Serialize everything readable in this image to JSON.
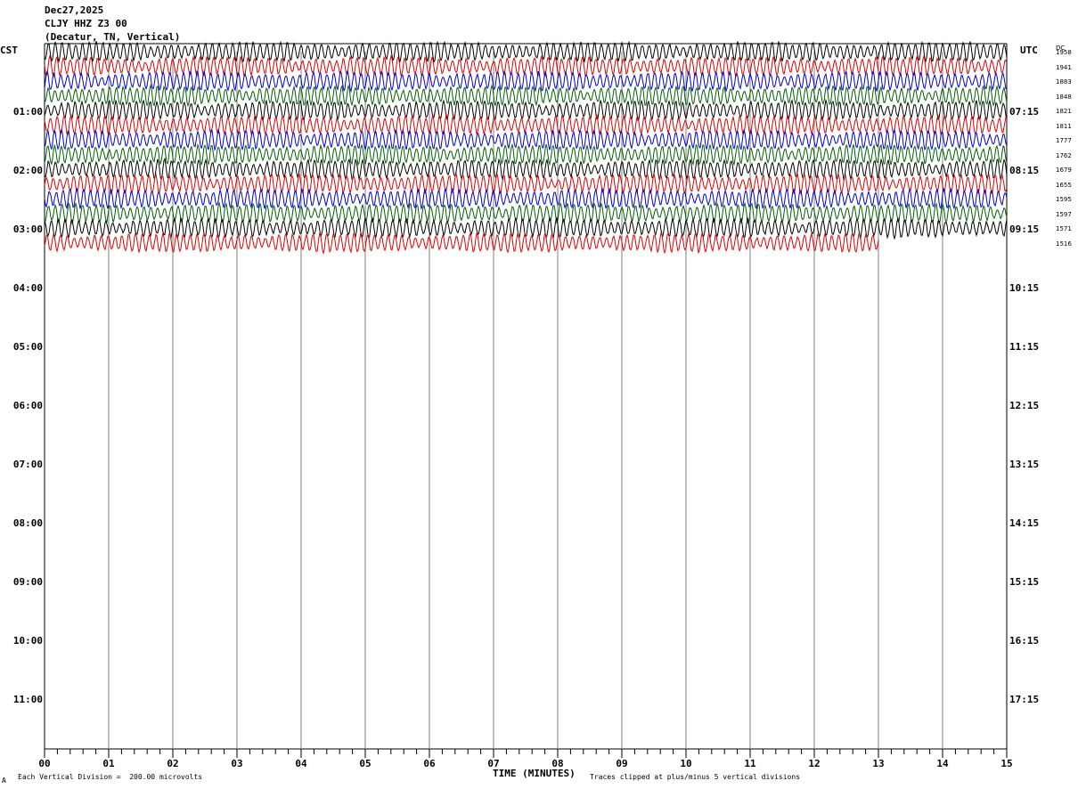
{
  "header": {
    "date": "Dec27,2025",
    "station": "CLJY HHZ Z3 00",
    "location": "(Decatur, TN, Vertical)"
  },
  "left_tz": "CST",
  "right_tz": "UTC",
  "dc_header": "DC",
  "left_labels": [
    "01:00",
    "02:00",
    "03:00",
    "04:00",
    "05:00",
    "06:00",
    "07:00",
    "08:00",
    "09:00",
    "10:00",
    "11:00"
  ],
  "right_labels": [
    "07:15",
    "08:15",
    "09:15",
    "10:15",
    "11:15",
    "12:15",
    "13:15",
    "14:15",
    "15:15",
    "16:15",
    "17:15"
  ],
  "x_ticks": [
    "00",
    "01",
    "02",
    "03",
    "04",
    "05",
    "06",
    "07",
    "08",
    "09",
    "10",
    "11",
    "12",
    "13",
    "14",
    "15"
  ],
  "x_title": "TIME (MINUTES)",
  "footer_left": "Each Vertical Division =  200.00 microvolts",
  "footer_right": "Traces clipped at plus/minus 5 vertical divisions",
  "corner_mark": "A",
  "chart_data": {
    "type": "line",
    "xlabel": "TIME (MINUTES)",
    "xlim": [
      0,
      15
    ],
    "x_ticks": [
      0,
      1,
      2,
      3,
      4,
      5,
      6,
      7,
      8,
      9,
      10,
      11,
      12,
      13,
      14,
      15
    ],
    "trace_colors": [
      "#000000",
      "#e00000",
      "#0000d0",
      "#006000"
    ],
    "trace_interval_minutes": 15,
    "dc_offsets": [
      1958,
      1941,
      1883,
      1848,
      1821,
      1811,
      1777,
      1762,
      1679,
      1655,
      1595,
      1597,
      1571,
      1516
    ],
    "last_trace_end_minute": 13.0
  }
}
